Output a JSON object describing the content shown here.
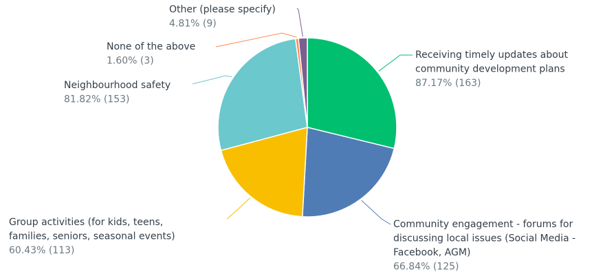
{
  "chart_data": {
    "type": "pie",
    "title": "",
    "slices": [
      {
        "name_lines": [
          "Receiving timely updates about",
          "community development plans"
        ],
        "value_label": "87.17% (163)",
        "percent": 87.17,
        "count": 163,
        "color": "#00bf6f"
      },
      {
        "name_lines": [
          "Community engagement - forums for",
          "discussing local issues (Social Media -",
          "Facebook, AGM)"
        ],
        "value_label": "66.84% (125)",
        "percent": 66.84,
        "count": 125,
        "color": "#507cb6"
      },
      {
        "name_lines": [
          "Group activities (for kids, teens,",
          "families, seniors, seasonal events)"
        ],
        "value_label": "60.43% (113)",
        "percent": 60.43,
        "count": 113,
        "color": "#f9be00"
      },
      {
        "name_lines": [
          "Neighbourhood safety"
        ],
        "value_label": "81.82% (153)",
        "percent": 81.82,
        "count": 153,
        "color": "#6bc8cd"
      },
      {
        "name_lines": [
          "None of the above"
        ],
        "value_label": "1.60% (3)",
        "percent": 1.6,
        "count": 3,
        "color": "#ff8b4f"
      },
      {
        "name_lines": [
          "Other (please specify)"
        ],
        "value_label": "4.81% (9)",
        "percent": 4.81,
        "count": 9,
        "color": "#7d5e90"
      }
    ]
  }
}
